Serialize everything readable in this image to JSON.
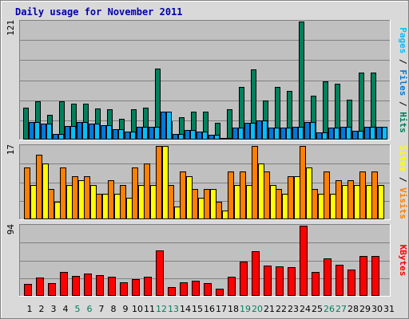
{
  "title": "Daily usage for November 2011",
  "colors": {
    "background": "#D9D9D9",
    "plot": "#C0C0C0",
    "title": "#0000AA",
    "hits": "#00805C",
    "files": "#0078D8",
    "pages": "#00C0FF",
    "visits": "#FF8000",
    "sites": "#FFFF00",
    "kbytes": "#FF0000",
    "weekend_day": "#00805C"
  },
  "chart_data": [
    {
      "type": "bar",
      "title": "Daily usage for November 2011",
      "categories": [
        "1",
        "2",
        "3",
        "4",
        "5",
        "6",
        "7",
        "8",
        "9",
        "10",
        "11",
        "12",
        "13",
        "14",
        "15",
        "16",
        "17",
        "18",
        "19",
        "20",
        "21",
        "22",
        "23",
        "24",
        "25",
        "26",
        "27",
        "28",
        "29",
        "30",
        "31"
      ],
      "weekend_days": [
        "5",
        "6",
        "12",
        "13",
        "19",
        "20",
        "26",
        "27"
      ],
      "ymax_label": "121",
      "ylim": [
        0,
        121
      ],
      "legend": [
        {
          "label": "Pages",
          "color": "#00C0FF"
        },
        {
          "label": "Files",
          "color": "#0078D8"
        },
        {
          "label": "Hits",
          "color": "#00805C"
        }
      ],
      "legend_separator": " / ",
      "series": [
        {
          "name": "Hits",
          "values": [
            33,
            39,
            25,
            39,
            37,
            37,
            32,
            31,
            21,
            31,
            33,
            73,
            19,
            23,
            29,
            29,
            17,
            31,
            54,
            72,
            40,
            54,
            50,
            121,
            45,
            60,
            57,
            41,
            69,
            69,
            0
          ]
        },
        {
          "name": "Files",
          "values": [
            18,
            16,
            6,
            14,
            18,
            16,
            15,
            11,
            8,
            13,
            13,
            29,
            6,
            10,
            8,
            5,
            2,
            12,
            17,
            20,
            12,
            12,
            13,
            18,
            7,
            12,
            13,
            9,
            13,
            13,
            0
          ]
        },
        {
          "name": "Pages",
          "values": [
            18,
            16,
            6,
            14,
            18,
            16,
            15,
            11,
            8,
            13,
            13,
            29,
            6,
            10,
            8,
            5,
            2,
            12,
            17,
            20,
            12,
            12,
            13,
            18,
            7,
            12,
            13,
            9,
            13,
            13,
            0
          ]
        }
      ]
    },
    {
      "type": "bar",
      "categories": [
        "1",
        "2",
        "3",
        "4",
        "5",
        "6",
        "7",
        "8",
        "9",
        "10",
        "11",
        "12",
        "13",
        "14",
        "15",
        "16",
        "17",
        "18",
        "19",
        "20",
        "21",
        "22",
        "23",
        "24",
        "25",
        "26",
        "27",
        "28",
        "29",
        "30",
        "31"
      ],
      "ymax_label": "17",
      "ylim": [
        0,
        17
      ],
      "legend": [
        {
          "label": "Sites",
          "color": "#FFFF00"
        },
        {
          "label": "Visits",
          "color": "#FF8000"
        }
      ],
      "legend_separator": " / ",
      "series": [
        {
          "name": "Visits",
          "values": [
            12,
            15,
            7,
            12,
            10,
            10,
            6,
            9,
            8,
            12,
            13,
            17,
            8,
            11,
            7,
            7,
            4,
            11,
            11,
            17,
            11,
            7,
            10,
            17,
            7,
            11,
            9,
            9,
            11,
            11,
            0
          ]
        },
        {
          "name": "Sites",
          "values": [
            8,
            13,
            4,
            8,
            9,
            8,
            6,
            6,
            5,
            8,
            8,
            17,
            3,
            10,
            5,
            7,
            2,
            8,
            8,
            13,
            8,
            6,
            10,
            12,
            6,
            6,
            8,
            8,
            8,
            8,
            0
          ]
        }
      ]
    },
    {
      "type": "bar",
      "categories": [
        "1",
        "2",
        "3",
        "4",
        "5",
        "6",
        "7",
        "8",
        "9",
        "10",
        "11",
        "12",
        "13",
        "14",
        "15",
        "16",
        "17",
        "18",
        "19",
        "20",
        "21",
        "22",
        "23",
        "24",
        "25",
        "26",
        "27",
        "28",
        "29",
        "30",
        "31"
      ],
      "ymax_label": "94",
      "ylim": [
        0,
        94
      ],
      "legend": [
        {
          "label": "KBytes",
          "color": "#FF0000"
        }
      ],
      "legend_separator": "",
      "series": [
        {
          "name": "KBytes",
          "values": [
            16,
            25,
            17,
            32,
            27,
            30,
            28,
            26,
            18,
            22,
            26,
            61,
            12,
            18,
            20,
            17,
            10,
            26,
            46,
            60,
            41,
            39,
            38,
            94,
            32,
            50,
            42,
            35,
            53,
            53,
            0
          ]
        }
      ]
    }
  ]
}
